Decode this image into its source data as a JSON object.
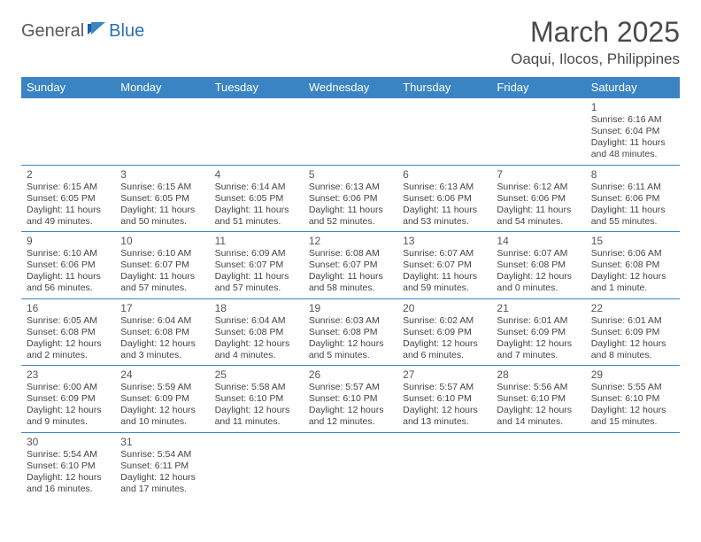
{
  "logo": {
    "part1": "General",
    "part2": "Blue"
  },
  "title": "March 2025",
  "location": "Oaqui, Ilocos, Philippines",
  "colors": {
    "header_bg": "#3b84c4",
    "header_text": "#ffffff",
    "border": "#3b84c4",
    "logo_gray": "#5a5a5a",
    "logo_blue": "#2b6fb3"
  },
  "weekdays": [
    "Sunday",
    "Monday",
    "Tuesday",
    "Wednesday",
    "Thursday",
    "Friday",
    "Saturday"
  ],
  "weeks": [
    [
      null,
      null,
      null,
      null,
      null,
      null,
      {
        "d": "1",
        "sr": "Sunrise: 6:16 AM",
        "ss": "Sunset: 6:04 PM",
        "dl": "Daylight: 11 hours and 48 minutes."
      }
    ],
    [
      {
        "d": "2",
        "sr": "Sunrise: 6:15 AM",
        "ss": "Sunset: 6:05 PM",
        "dl": "Daylight: 11 hours and 49 minutes."
      },
      {
        "d": "3",
        "sr": "Sunrise: 6:15 AM",
        "ss": "Sunset: 6:05 PM",
        "dl": "Daylight: 11 hours and 50 minutes."
      },
      {
        "d": "4",
        "sr": "Sunrise: 6:14 AM",
        "ss": "Sunset: 6:05 PM",
        "dl": "Daylight: 11 hours and 51 minutes."
      },
      {
        "d": "5",
        "sr": "Sunrise: 6:13 AM",
        "ss": "Sunset: 6:06 PM",
        "dl": "Daylight: 11 hours and 52 minutes."
      },
      {
        "d": "6",
        "sr": "Sunrise: 6:13 AM",
        "ss": "Sunset: 6:06 PM",
        "dl": "Daylight: 11 hours and 53 minutes."
      },
      {
        "d": "7",
        "sr": "Sunrise: 6:12 AM",
        "ss": "Sunset: 6:06 PM",
        "dl": "Daylight: 11 hours and 54 minutes."
      },
      {
        "d": "8",
        "sr": "Sunrise: 6:11 AM",
        "ss": "Sunset: 6:06 PM",
        "dl": "Daylight: 11 hours and 55 minutes."
      }
    ],
    [
      {
        "d": "9",
        "sr": "Sunrise: 6:10 AM",
        "ss": "Sunset: 6:06 PM",
        "dl": "Daylight: 11 hours and 56 minutes."
      },
      {
        "d": "10",
        "sr": "Sunrise: 6:10 AM",
        "ss": "Sunset: 6:07 PM",
        "dl": "Daylight: 11 hours and 57 minutes."
      },
      {
        "d": "11",
        "sr": "Sunrise: 6:09 AM",
        "ss": "Sunset: 6:07 PM",
        "dl": "Daylight: 11 hours and 57 minutes."
      },
      {
        "d": "12",
        "sr": "Sunrise: 6:08 AM",
        "ss": "Sunset: 6:07 PM",
        "dl": "Daylight: 11 hours and 58 minutes."
      },
      {
        "d": "13",
        "sr": "Sunrise: 6:07 AM",
        "ss": "Sunset: 6:07 PM",
        "dl": "Daylight: 11 hours and 59 minutes."
      },
      {
        "d": "14",
        "sr": "Sunrise: 6:07 AM",
        "ss": "Sunset: 6:08 PM",
        "dl": "Daylight: 12 hours and 0 minutes."
      },
      {
        "d": "15",
        "sr": "Sunrise: 6:06 AM",
        "ss": "Sunset: 6:08 PM",
        "dl": "Daylight: 12 hours and 1 minute."
      }
    ],
    [
      {
        "d": "16",
        "sr": "Sunrise: 6:05 AM",
        "ss": "Sunset: 6:08 PM",
        "dl": "Daylight: 12 hours and 2 minutes."
      },
      {
        "d": "17",
        "sr": "Sunrise: 6:04 AM",
        "ss": "Sunset: 6:08 PM",
        "dl": "Daylight: 12 hours and 3 minutes."
      },
      {
        "d": "18",
        "sr": "Sunrise: 6:04 AM",
        "ss": "Sunset: 6:08 PM",
        "dl": "Daylight: 12 hours and 4 minutes."
      },
      {
        "d": "19",
        "sr": "Sunrise: 6:03 AM",
        "ss": "Sunset: 6:08 PM",
        "dl": "Daylight: 12 hours and 5 minutes."
      },
      {
        "d": "20",
        "sr": "Sunrise: 6:02 AM",
        "ss": "Sunset: 6:09 PM",
        "dl": "Daylight: 12 hours and 6 minutes."
      },
      {
        "d": "21",
        "sr": "Sunrise: 6:01 AM",
        "ss": "Sunset: 6:09 PM",
        "dl": "Daylight: 12 hours and 7 minutes."
      },
      {
        "d": "22",
        "sr": "Sunrise: 6:01 AM",
        "ss": "Sunset: 6:09 PM",
        "dl": "Daylight: 12 hours and 8 minutes."
      }
    ],
    [
      {
        "d": "23",
        "sr": "Sunrise: 6:00 AM",
        "ss": "Sunset: 6:09 PM",
        "dl": "Daylight: 12 hours and 9 minutes."
      },
      {
        "d": "24",
        "sr": "Sunrise: 5:59 AM",
        "ss": "Sunset: 6:09 PM",
        "dl": "Daylight: 12 hours and 10 minutes."
      },
      {
        "d": "25",
        "sr": "Sunrise: 5:58 AM",
        "ss": "Sunset: 6:10 PM",
        "dl": "Daylight: 12 hours and 11 minutes."
      },
      {
        "d": "26",
        "sr": "Sunrise: 5:57 AM",
        "ss": "Sunset: 6:10 PM",
        "dl": "Daylight: 12 hours and 12 minutes."
      },
      {
        "d": "27",
        "sr": "Sunrise: 5:57 AM",
        "ss": "Sunset: 6:10 PM",
        "dl": "Daylight: 12 hours and 13 minutes."
      },
      {
        "d": "28",
        "sr": "Sunrise: 5:56 AM",
        "ss": "Sunset: 6:10 PM",
        "dl": "Daylight: 12 hours and 14 minutes."
      },
      {
        "d": "29",
        "sr": "Sunrise: 5:55 AM",
        "ss": "Sunset: 6:10 PM",
        "dl": "Daylight: 12 hours and 15 minutes."
      }
    ],
    [
      {
        "d": "30",
        "sr": "Sunrise: 5:54 AM",
        "ss": "Sunset: 6:10 PM",
        "dl": "Daylight: 12 hours and 16 minutes."
      },
      {
        "d": "31",
        "sr": "Sunrise: 5:54 AM",
        "ss": "Sunset: 6:11 PM",
        "dl": "Daylight: 12 hours and 17 minutes."
      },
      null,
      null,
      null,
      null,
      null
    ]
  ]
}
